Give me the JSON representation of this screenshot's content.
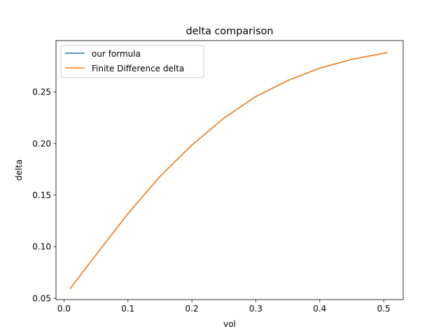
{
  "chart_data": {
    "type": "line",
    "title": "delta comparison",
    "xlabel": "vol",
    "ylabel": "delta",
    "xlim": [
      -0.0125,
      0.5305
    ],
    "ylim": [
      0.0487,
      0.2997
    ],
    "xticks": [
      0.0,
      0.1,
      0.2,
      0.3,
      0.4,
      0.5
    ],
    "xtick_labels": [
      "0.0",
      "0.1",
      "0.2",
      "0.3",
      "0.4",
      "0.5"
    ],
    "yticks": [
      0.05,
      0.1,
      0.15,
      0.2,
      0.25
    ],
    "ytick_labels": [
      "0.05",
      "0.10",
      "0.15",
      "0.20",
      "0.25"
    ],
    "grid": false,
    "legend_position": "top-left",
    "series": [
      {
        "name": "our formula",
        "color": "#1f77b4",
        "x": [
          0.01,
          0.05,
          0.1,
          0.15,
          0.2,
          0.25,
          0.3,
          0.35,
          0.4,
          0.45,
          0.505
        ],
        "y": [
          0.0597,
          0.092,
          0.132,
          0.168,
          0.1985,
          0.2245,
          0.2455,
          0.261,
          0.273,
          0.2815,
          0.288
        ]
      },
      {
        "name": "Finite Difference delta",
        "color": "#ff7f0e",
        "x": [
          0.01,
          0.05,
          0.1,
          0.15,
          0.2,
          0.25,
          0.3,
          0.35,
          0.4,
          0.45,
          0.505
        ],
        "y": [
          0.0597,
          0.092,
          0.132,
          0.168,
          0.1985,
          0.2245,
          0.2455,
          0.261,
          0.273,
          0.2815,
          0.288
        ]
      }
    ]
  }
}
